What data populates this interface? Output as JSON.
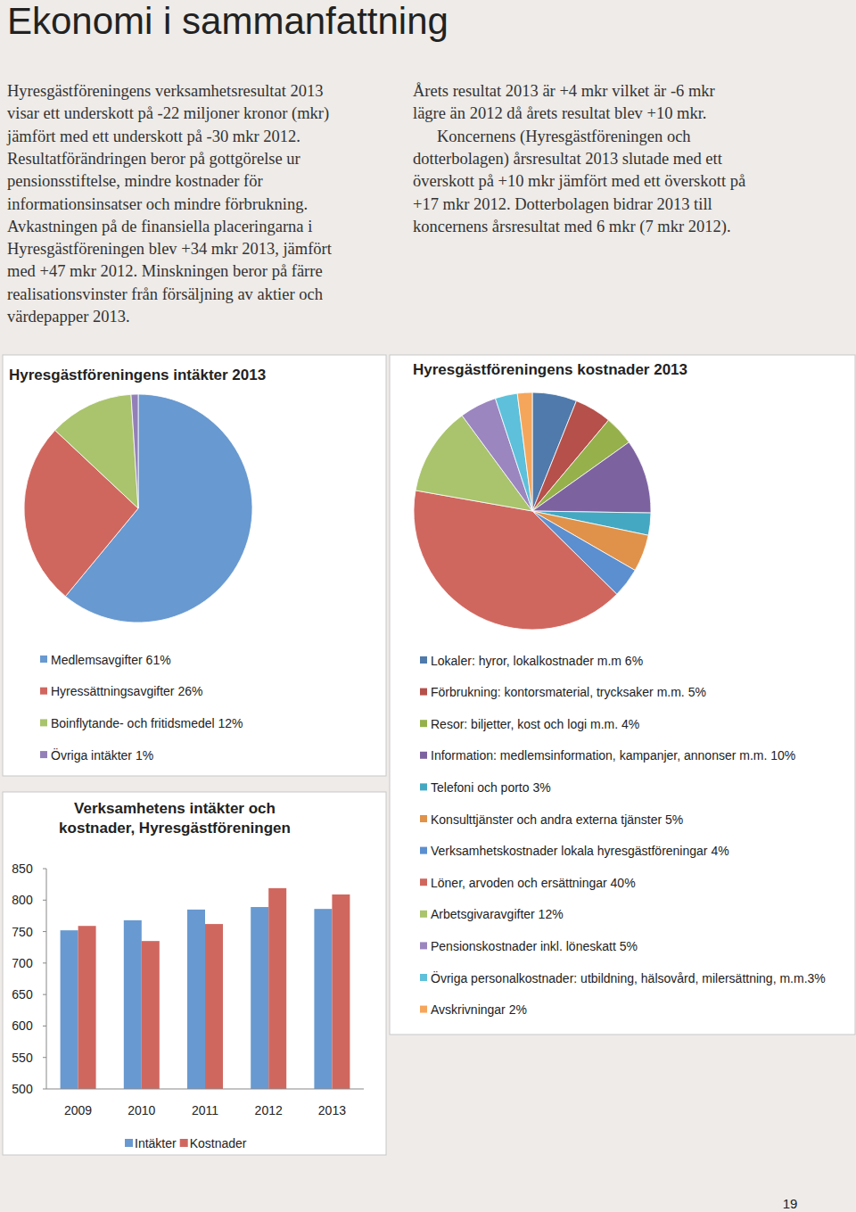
{
  "header": {
    "title": "Ekonomi i sammanfattning"
  },
  "text": {
    "left": [
      "Hyresgästföreningens verksamhetsresultat 2013",
      "visar ett underskott på -22 miljoner kronor (mkr)",
      "jämfört med ett underskott på -30 mkr 2012.",
      "Resultatförändringen beror på gottgörelse ur",
      "pensionsstiftelse, mindre kostnader för",
      "informationsinsatser och mindre förbrukning.",
      "Avkastningen på de finansiella placeringarna i",
      "Hyresgästföreningen blev +34 mkr 2013, jämfört",
      "med +47 mkr 2012. Minskningen beror på färre",
      "realisationsvinster från försäljning av aktier och",
      "värdepapper 2013."
    ],
    "right": [
      [
        "Årets resultat 2013 är +4 mkr vilket är -6 mkr",
        "lägre än 2012 då årets resultat blev +10 mkr."
      ],
      [
        "Koncernens (Hyresgästföreningen och",
        "dotterbolagen) årsresultat 2013 slutade med ett",
        "överskott på +10 mkr jämfört med ett överskott på",
        "+17 mkr 2012. Dotterbolagen bidrar 2013 till",
        "koncernens årsresultat med 6 mkr (7 mkr 2012)."
      ]
    ]
  },
  "chart_data": [
    {
      "type": "pie",
      "title": "Hyresgästföreningens intäkter 2013",
      "categories": [
        "Medlemsavgifter 61%",
        "Hyressättningsavgifter 26%",
        "Boinflytande- och fritidsmedel 12%",
        "Övriga intäkter 1%"
      ],
      "values": [
        61,
        26,
        12,
        1
      ],
      "colors": [
        "#6899d0",
        "#d0675f",
        "#a9c46d",
        "#9480b8"
      ],
      "legend": "bottom"
    },
    {
      "type": "pie",
      "title": "Hyresgästföreningens kostnader 2013",
      "categories": [
        "Lokaler: hyror, lokalkostnader m.m 6%",
        "Förbrukning: kontorsmaterial, trycksaker m.m. 5%",
        "Resor: biljetter, kost och logi m.m. 4%",
        "Information: medlemsinformation, kampanjer, annonser m.m. 10%",
        "Telefoni och porto 3%",
        "Konsulttjänster och andra externa tjänster 5%",
        "Verksamhetskostnader lokala hyresgästföreningar 4%",
        "Löner, arvoden och ersättningar 40%",
        "Arbetsgivaravgifter 12%",
        "Pensionskostnader inkl. löneskatt 5%",
        "Övriga personalkostnader: utbildning, hälsovård, milersättning, m.m.3%",
        "Avskrivningar 2%"
      ],
      "values": [
        6,
        5,
        4,
        10,
        3,
        5,
        4,
        40,
        12,
        5,
        3,
        2
      ],
      "colors": [
        "#4f7aab",
        "#b5504b",
        "#96b04c",
        "#7d62a0",
        "#45a8c2",
        "#e0924a",
        "#5b8fd0",
        "#d0675f",
        "#a9c46d",
        "#9b86bf",
        "#5ec0da",
        "#f5a65b"
      ],
      "legend": "bottom"
    },
    {
      "type": "bar",
      "title": "Verksamhetens intäkter och kostnader, Hyresgästföreningen",
      "categories": [
        "2009",
        "2010",
        "2011",
        "2012",
        "2013"
      ],
      "series": [
        {
          "name": "Intäkter",
          "color": "#6899d0",
          "values": [
            752,
            768,
            785,
            789,
            786
          ]
        },
        {
          "name": "Kostnader",
          "color": "#d0675f",
          "values": [
            759,
            735,
            762,
            819,
            809
          ]
        }
      ],
      "ylim": [
        500,
        850
      ],
      "yticks": [
        500,
        550,
        600,
        650,
        700,
        750,
        800,
        850
      ],
      "grid": false,
      "legend": "bottom"
    }
  ],
  "page_number": "19"
}
